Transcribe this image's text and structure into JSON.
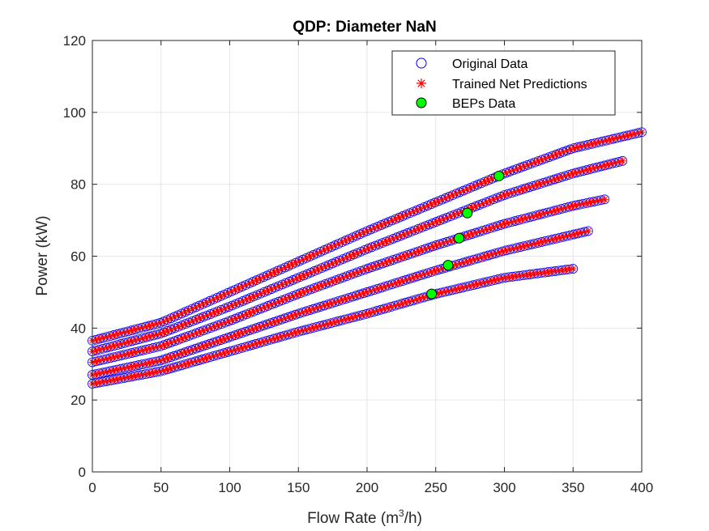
{
  "chart_data": {
    "type": "scatter",
    "title": "QDP: Diameter NaN",
    "xlabel": "Flow Rate (m³/h)",
    "xlabel_parts": {
      "prefix": "Flow Rate (m",
      "sup": "3",
      "suffix": "/h)"
    },
    "ylabel": "Power (kW)",
    "xlim": [
      0,
      400
    ],
    "ylim": [
      0,
      120
    ],
    "xticks": [
      0,
      50,
      100,
      150,
      200,
      250,
      300,
      350,
      400
    ],
    "yticks": [
      0,
      20,
      40,
      60,
      80,
      100,
      120
    ],
    "grid": true,
    "legend_position": "top-right",
    "legend": [
      "Original Data",
      "Trained Net Predictions",
      "BEPs Data"
    ],
    "curves": [
      {
        "q_max": 400,
        "points": [
          [
            0,
            36.5
          ],
          [
            50,
            41.5
          ],
          [
            100,
            50
          ],
          [
            150,
            58.5
          ],
          [
            200,
            67
          ],
          [
            250,
            75
          ],
          [
            300,
            83
          ],
          [
            350,
            90
          ],
          [
            400,
            94.5
          ]
        ]
      },
      {
        "q_max": 386,
        "points": [
          [
            0,
            33.5
          ],
          [
            50,
            38.5
          ],
          [
            100,
            46
          ],
          [
            150,
            54
          ],
          [
            200,
            62
          ],
          [
            250,
            69.5
          ],
          [
            300,
            77
          ],
          [
            350,
            83
          ],
          [
            386,
            86.5
          ]
        ]
      },
      {
        "q_max": 373,
        "points": [
          [
            0,
            30.5
          ],
          [
            50,
            35
          ],
          [
            100,
            42
          ],
          [
            150,
            49.5
          ],
          [
            200,
            56.5
          ],
          [
            250,
            63
          ],
          [
            300,
            69
          ],
          [
            350,
            74
          ],
          [
            373,
            75.8
          ]
        ]
      },
      {
        "q_max": 361,
        "points": [
          [
            0,
            27
          ],
          [
            50,
            31
          ],
          [
            100,
            37.5
          ],
          [
            150,
            44
          ],
          [
            200,
            50
          ],
          [
            250,
            56
          ],
          [
            300,
            61.5
          ],
          [
            361,
            67
          ]
        ]
      },
      {
        "q_max": 350,
        "points": [
          [
            0,
            24.5
          ],
          [
            50,
            28
          ],
          [
            100,
            33.5
          ],
          [
            150,
            39
          ],
          [
            200,
            44
          ],
          [
            250,
            49.5
          ],
          [
            300,
            54
          ],
          [
            350,
            56.5
          ]
        ]
      }
    ],
    "beps": [
      [
        296,
        82.3
      ],
      [
        273,
        72
      ],
      [
        267,
        65
      ],
      [
        259,
        57.5
      ],
      [
        247,
        49.5
      ]
    ],
    "colors": {
      "original": "#0000ff",
      "predictions": "#ff0000",
      "beps_fill": "#00ff00",
      "beps_edge": "#000000",
      "grid": "#e6e6e6",
      "axis": "#262626"
    }
  }
}
